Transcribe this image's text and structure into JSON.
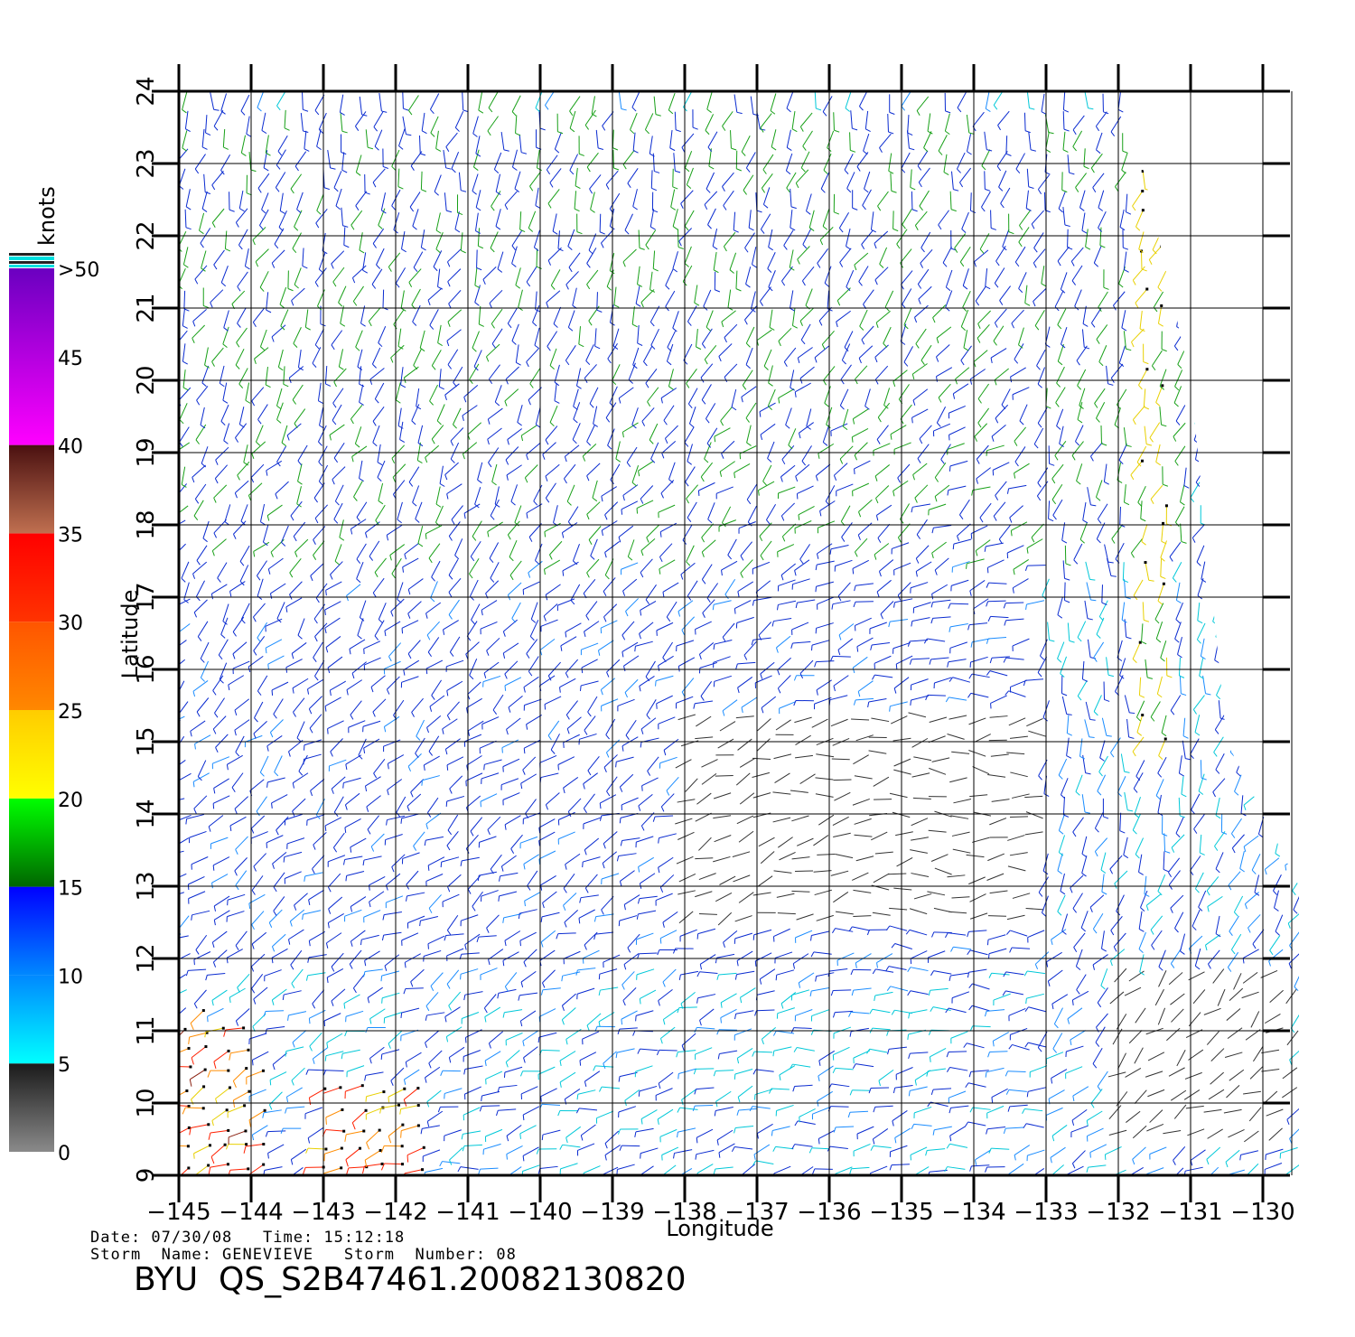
{
  "chart_data": {
    "type": "wind-barb-field",
    "xlabel": "Longitude",
    "ylabel": "Latitude",
    "xlim": [
      -145,
      -129.5
    ],
    "ylim": [
      9,
      24
    ],
    "x_ticks": [
      "-145",
      "-144",
      "-143",
      "-142",
      "-141",
      "-140",
      "-139",
      "-138",
      "-137",
      "-136",
      "-135",
      "-134",
      "-133",
      "-132",
      "-131",
      "-130"
    ],
    "y_ticks": [
      "9",
      "10",
      "11",
      "12",
      "13",
      "14",
      "15",
      "16",
      "17",
      "18",
      "19",
      "20",
      "21",
      "22",
      "23",
      "24"
    ],
    "grid": true,
    "swath_right_edge": [
      [
        -131.9,
        24
      ],
      [
        -131.0,
        20
      ],
      [
        -130.5,
        15
      ],
      [
        -129.5,
        13
      ],
      [
        -129.5,
        9
      ]
    ],
    "colorbar": {
      "unit": "knots",
      "labels": [
        "0",
        "5",
        "10",
        "15",
        "20",
        "25",
        "30",
        "35",
        "40",
        "45",
        ">50"
      ],
      "bands": [
        {
          "range": [
            0,
            5
          ],
          "colors": [
            "#8a8a8a",
            "#1a1a1a"
          ]
        },
        {
          "range": [
            5,
            10
          ],
          "colors": [
            "#00ffff",
            "#0088ff"
          ]
        },
        {
          "range": [
            10,
            15
          ],
          "colors": [
            "#0088ff",
            "#0000ff"
          ]
        },
        {
          "range": [
            15,
            20
          ],
          "colors": [
            "#006600",
            "#00ff00"
          ]
        },
        {
          "range": [
            20,
            25
          ],
          "colors": [
            "#ffff00",
            "#ffcc00"
          ]
        },
        {
          "range": [
            25,
            30
          ],
          "colors": [
            "#ff8800",
            "#ff5500"
          ]
        },
        {
          "range": [
            30,
            35
          ],
          "colors": [
            "#ff3300",
            "#ff0000"
          ]
        },
        {
          "range": [
            35,
            40
          ],
          "colors": [
            "#c07050",
            "#4a1010"
          ]
        },
        {
          "range": [
            40,
            50
          ],
          "colors": [
            "#ff00ff",
            "#6a00c0"
          ]
        }
      ]
    },
    "wind_regions": [
      {
        "lon": [
          -145,
          -131
        ],
        "lat": [
          17.5,
          24
        ],
        "speed_kt": [
          10,
          18
        ]
      },
      {
        "lon": [
          -145,
          -133
        ],
        "lat": [
          12,
          17.5
        ],
        "speed_kt": [
          9,
          15
        ]
      },
      {
        "lon": [
          -138,
          -133
        ],
        "lat": [
          12.5,
          15.5
        ],
        "speed_kt": [
          1,
          5
        ]
      },
      {
        "lon": [
          -132,
          -129.5
        ],
        "lat": [
          9.5,
          12
        ],
        "speed_kt": [
          1,
          5
        ]
      },
      {
        "lon": [
          -145,
          -143.8
        ],
        "lat": [
          9,
          11.3
        ],
        "speed_kt": [
          22,
          36
        ]
      },
      {
        "lon": [
          -143,
          -141.5
        ],
        "lat": [
          9,
          10.3
        ],
        "speed_kt": [
          22,
          36
        ]
      },
      {
        "lon": [
          -131.8,
          -131.2
        ],
        "lat": [
          15,
          23
        ],
        "speed_kt": [
          18,
          24
        ]
      }
    ]
  },
  "footer": {
    "line1": "Date: 07/30/08   Time: 15:12:18",
    "line2": "Storm  Name: GENEVIEVE   Storm  Number: 08",
    "title": "BYU  QS_S2B47461.20082130820"
  }
}
